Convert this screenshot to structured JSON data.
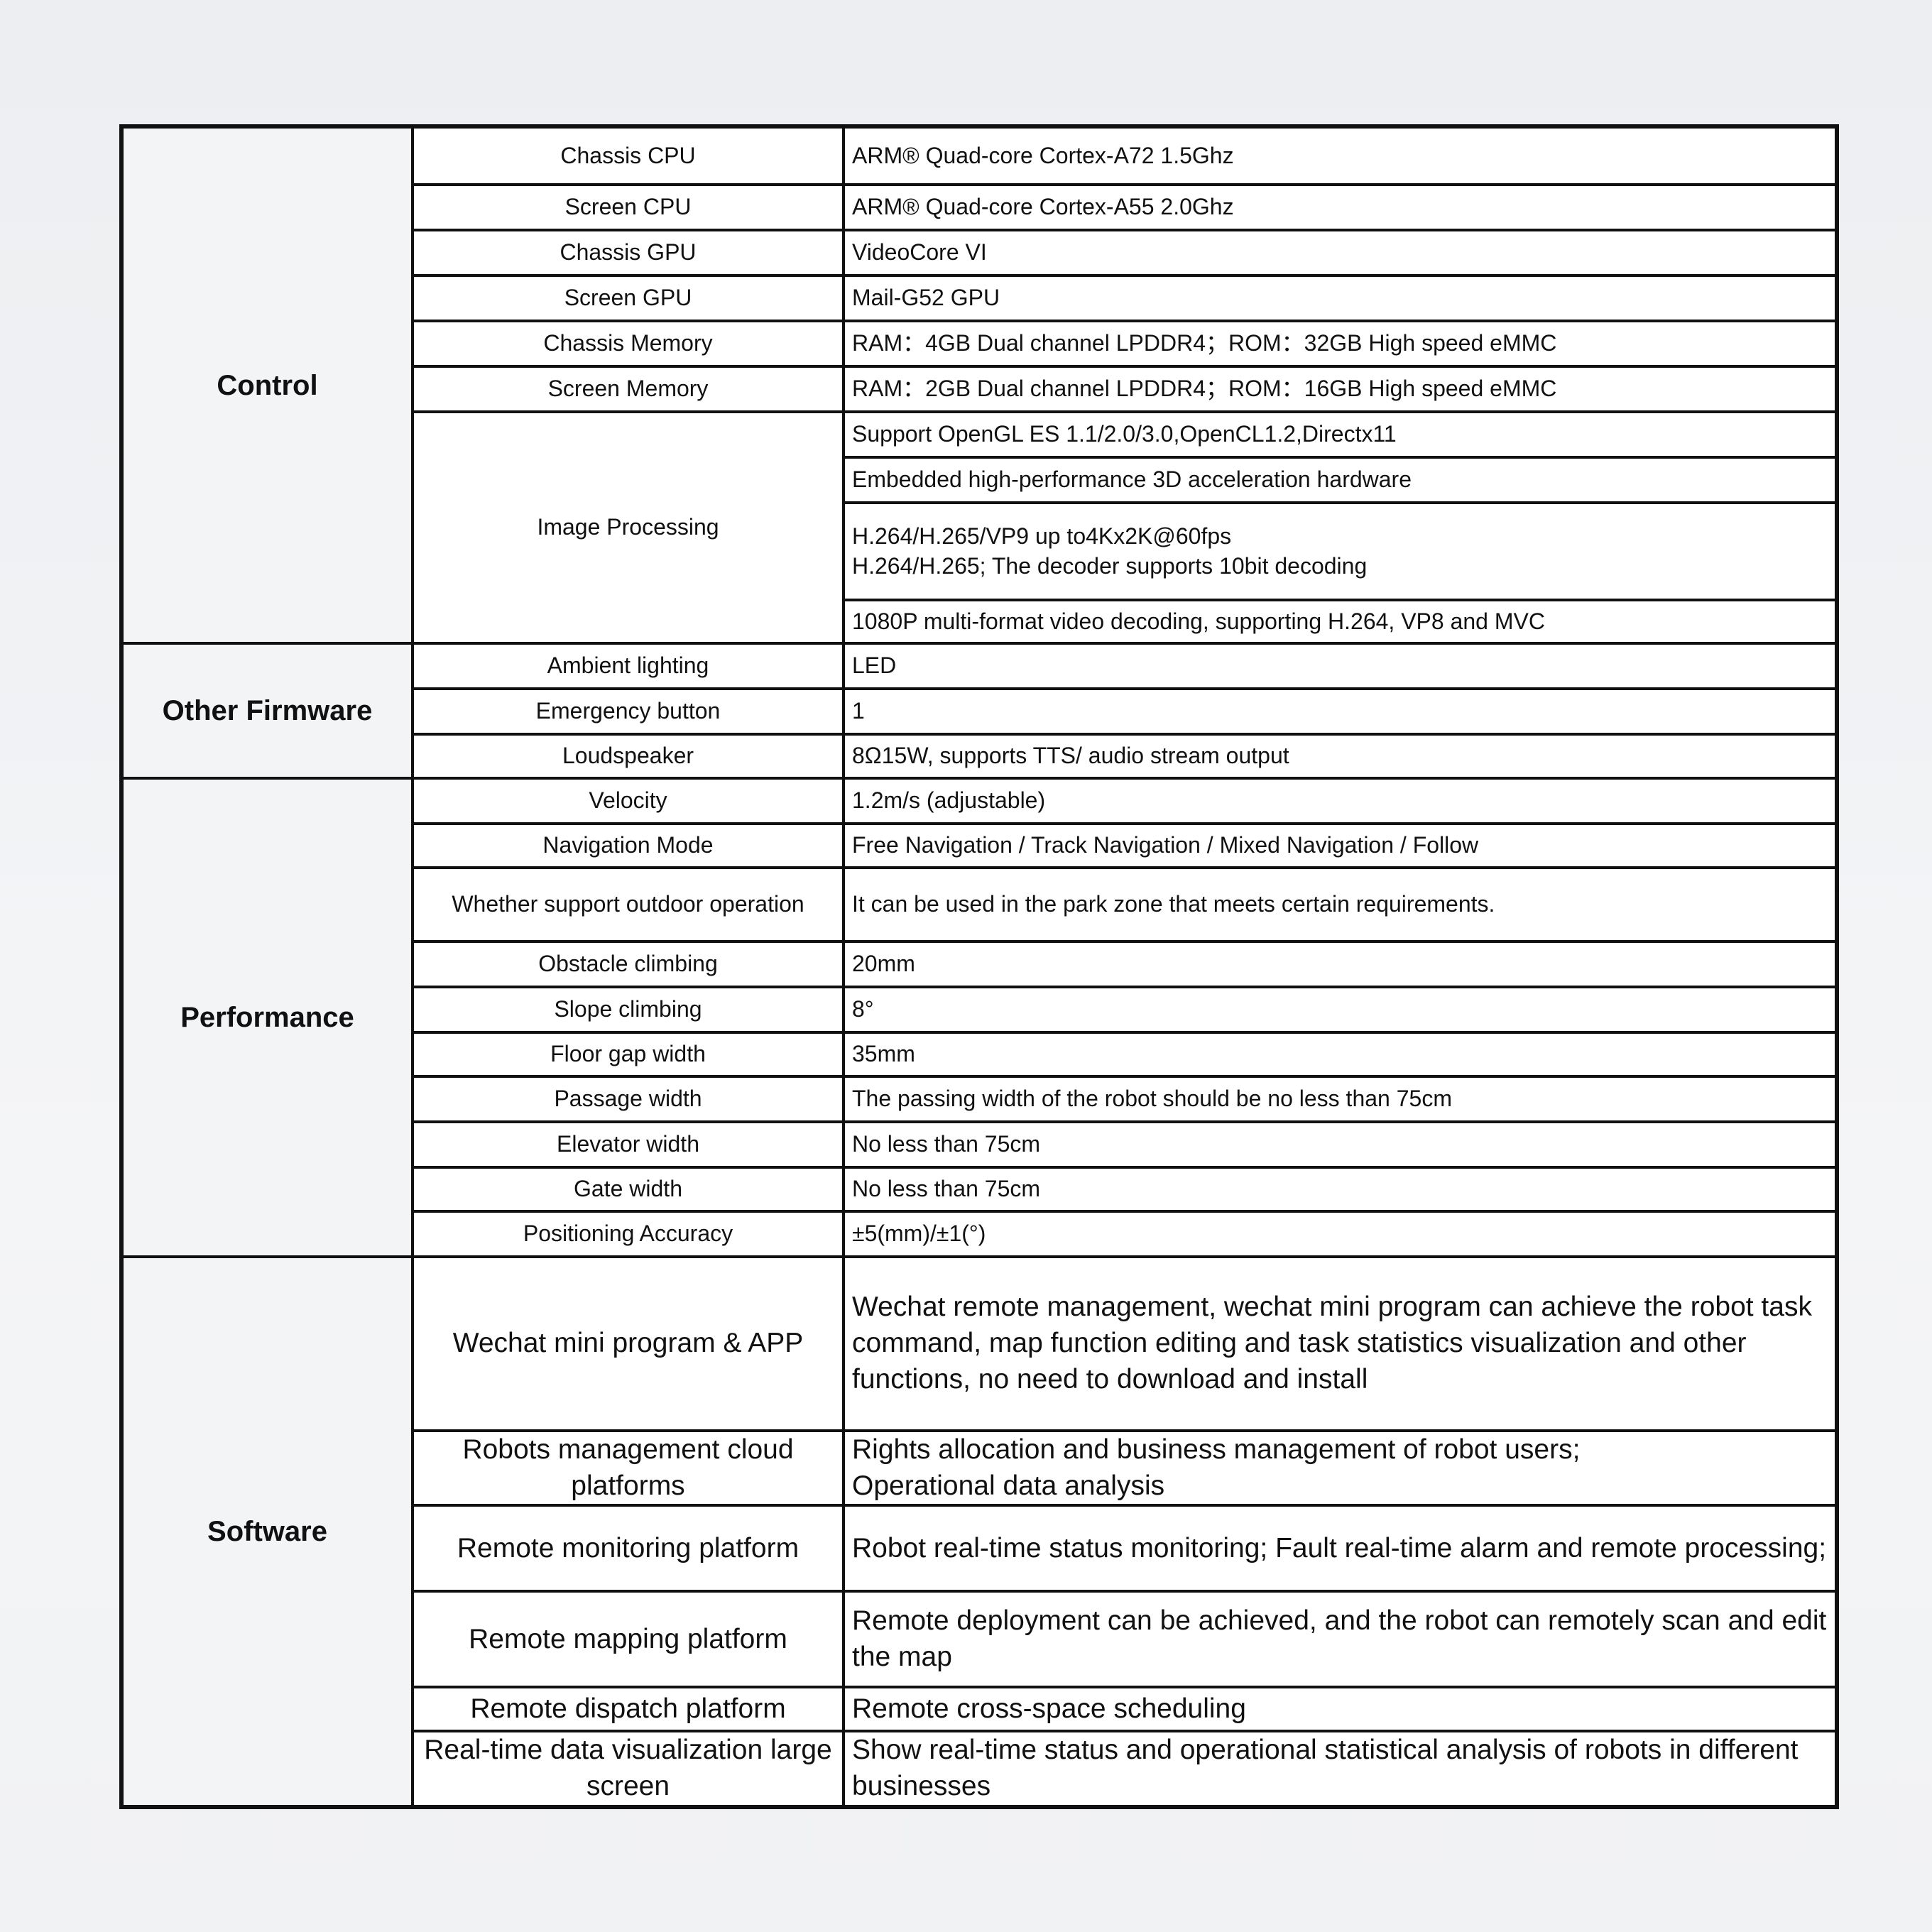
{
  "groups": [
    {
      "name": "Control",
      "rows": [
        {
          "label": "Chassis CPU",
          "values": [
            [
              "ARM® Quad-core  Cortex-A72 1.5Ghz"
            ]
          ]
        },
        {
          "label": "Screen CPU",
          "values": [
            [
              "ARM® Quad-core  Cortex-A55 2.0Ghz"
            ]
          ]
        },
        {
          "label": "Chassis GPU",
          "values": [
            [
              "VideoCore VI"
            ]
          ]
        },
        {
          "label": "Screen GPU",
          "values": [
            [
              "Mail-G52 GPU"
            ]
          ]
        },
        {
          "label": "Chassis Memory",
          "values": [
            [
              "RAM：4GB  Dual channel LPDDR4；ROM：32GB  High speed eMMC"
            ]
          ]
        },
        {
          "label": "Screen Memory",
          "values": [
            [
              "RAM：2GB  Dual channel LPDDR4；ROM：16GB  High speed eMMC"
            ]
          ]
        },
        {
          "label": "Image Processing",
          "values": [
            [
              "Support OpenGL ES  1.1/2.0/3.0,OpenCL1.2,Directx11"
            ],
            [
              "Embedded high-performance 3D acceleration hardware"
            ],
            [
              "H.264/H.265/VP9 up to4Kx2K@60fps",
              "H.264/H.265; The decoder supports 10bit decoding"
            ],
            [
              "1080P multi-format video decoding, supporting H.264, VP8 and MVC"
            ]
          ]
        }
      ]
    },
    {
      "name": "Other Firmware",
      "rows": [
        {
          "label": "Ambient lighting",
          "values": [
            [
              "LED"
            ]
          ]
        },
        {
          "label": "Emergency button",
          "values": [
            [
              "1"
            ]
          ]
        },
        {
          "label": "Loudspeaker",
          "values": [
            [
              "8Ω15W, supports TTS/ audio stream output"
            ]
          ]
        }
      ]
    },
    {
      "name": "Performance",
      "rows": [
        {
          "label": "Velocity",
          "values": [
            [
              "1.2m/s (adjustable)"
            ]
          ]
        },
        {
          "label": "Navigation Mode",
          "values": [
            [
              "Free Navigation / Track Navigation / Mixed Navigation / Follow"
            ]
          ]
        },
        {
          "label": "Whether support outdoor operation",
          "values": [
            [
              "It can be used in the park zone that meets certain requirements."
            ]
          ]
        },
        {
          "label": "Obstacle climbing",
          "values": [
            [
              "20mm"
            ]
          ]
        },
        {
          "label": "Slope climbing",
          "values": [
            [
              "8°"
            ]
          ]
        },
        {
          "label": "Floor gap width",
          "values": [
            [
              "35mm"
            ]
          ]
        },
        {
          "label": "Passage width",
          "values": [
            [
              "The passing width of the robot should be no less than 75cm"
            ]
          ]
        },
        {
          "label": "Elevator width",
          "values": [
            [
              "No less than 75cm"
            ]
          ]
        },
        {
          "label": "Gate width",
          "values": [
            [
              "No less than 75cm"
            ]
          ]
        },
        {
          "label": "Positioning Accuracy",
          "values": [
            [
              "±5(mm)/±1(°)"
            ]
          ]
        }
      ]
    },
    {
      "name": "Software",
      "rows": [
        {
          "label": "Wechat mini program & APP",
          "values": [
            [
              "Wechat remote management, wechat mini program can achieve the robot task command, map function editing and task statistics visualization and other functions, no need to download and install"
            ]
          ]
        },
        {
          "label": "Robots management cloud platforms",
          "values": [
            [
              "Rights allocation and business management of robot users;",
              "Operational data analysis"
            ]
          ]
        },
        {
          "label": "Remote monitoring platform",
          "values": [
            [
              "Robot real-time status monitoring; Fault real-time alarm and remote processing;"
            ]
          ]
        },
        {
          "label": "Remote mapping platform",
          "values": [
            [
              "Remote deployment can be achieved, and the robot can remotely scan and edit the map"
            ]
          ]
        },
        {
          "label": "Remote dispatch platform",
          "values": [
            [
              "Remote cross-space scheduling"
            ]
          ]
        },
        {
          "label": "Real-time data visualization large screen",
          "values": [
            [
              "Show real-time status and operational statistical analysis of robots in different businesses"
            ]
          ]
        }
      ]
    }
  ]
}
